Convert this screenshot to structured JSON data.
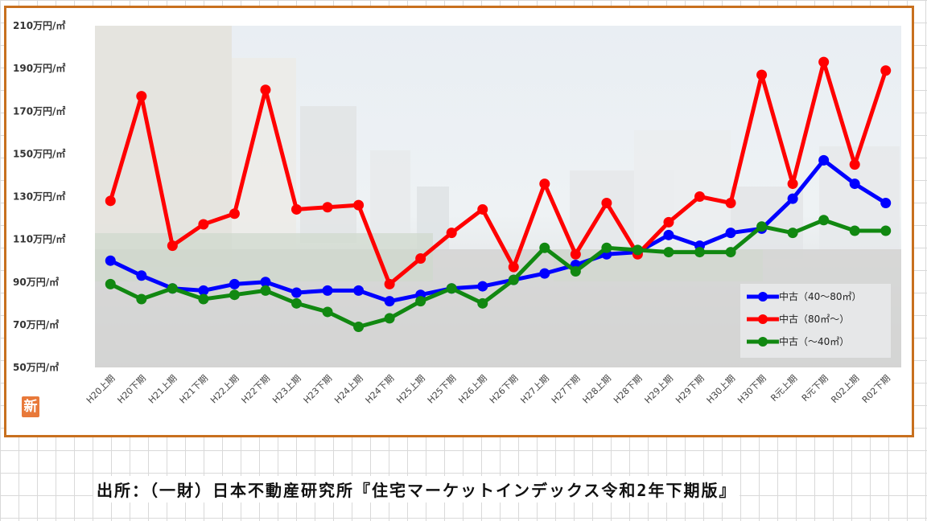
{
  "badge": "新",
  "source_note": "出所：（一財）日本不動産研究所『住宅マーケットインデックス令和2年下期版』",
  "chart_data": {
    "type": "line",
    "ylim": [
      50,
      210
    ],
    "y_ticks": [
      50,
      70,
      90,
      110,
      130,
      150,
      170,
      190,
      210
    ],
    "y_tick_labels": [
      "50万円/㎡",
      "70万円/㎡",
      "90万円/㎡",
      "110万円/㎡",
      "130万円/㎡",
      "150万円/㎡",
      "170万円/㎡",
      "190万円/㎡",
      "210万円/㎡"
    ],
    "categories": [
      "H20上期",
      "H20下期",
      "H21上期",
      "H21下期",
      "H22上期",
      "H22下期",
      "H23上期",
      "H23下期",
      "H24上期",
      "H24下期",
      "H25上期",
      "H25下期",
      "H26上期",
      "H26下期",
      "H27上期",
      "H27下期",
      "H28上期",
      "H28下期",
      "H29上期",
      "H29下期",
      "H30上期",
      "H30下期",
      "R元上期",
      "R元下期",
      "R02上期",
      "R02下期"
    ],
    "legend_position": "bottom-right",
    "series": [
      {
        "name": "中古（40～80㎡）",
        "color": "#0000ff",
        "values": [
          100,
          93,
          87,
          86,
          89,
          90,
          85,
          86,
          86,
          81,
          84,
          87,
          88,
          91,
          94,
          98,
          103,
          104,
          112,
          107,
          113,
          115,
          129,
          147,
          136,
          127
        ]
      },
      {
        "name": "中古（80㎡～）",
        "color": "#ff0000",
        "values": [
          128,
          177,
          107,
          117,
          122,
          180,
          124,
          125,
          126,
          89,
          101,
          113,
          124,
          97,
          136,
          103,
          127,
          103,
          118,
          130,
          127,
          187,
          136,
          193,
          145,
          189
        ]
      },
      {
        "name": "中古（～40㎡）",
        "color": "#118811",
        "values": [
          89,
          82,
          87,
          82,
          84,
          86,
          80,
          76,
          69,
          73,
          81,
          87,
          80,
          91,
          106,
          95,
          106,
          105,
          104,
          104,
          104,
          116,
          113,
          119,
          114,
          114
        ]
      }
    ]
  }
}
